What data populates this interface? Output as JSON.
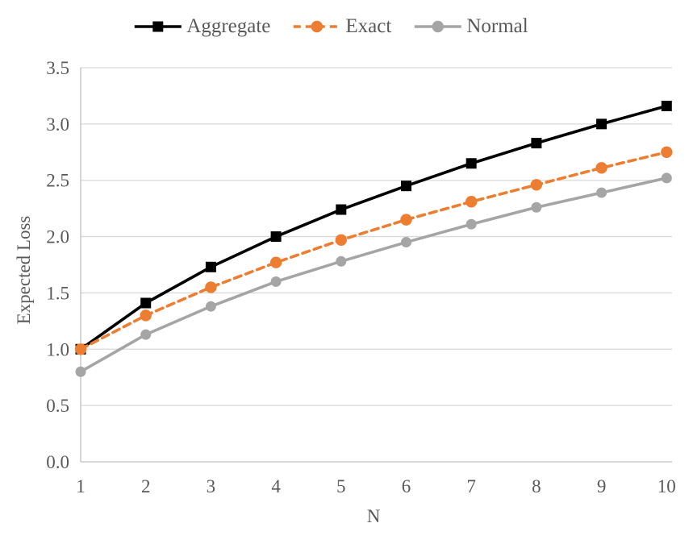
{
  "chart_data": {
    "type": "line",
    "title": "",
    "xlabel": "N",
    "ylabel": "Expected Loss",
    "x": [
      1,
      2,
      3,
      4,
      5,
      6,
      7,
      8,
      9,
      10
    ],
    "series": [
      {
        "name": "Aggregate",
        "color": "#000000",
        "line_style": "solid",
        "marker": "square",
        "values": [
          1.0,
          1.41,
          1.73,
          2.0,
          2.24,
          2.45,
          2.65,
          2.83,
          3.0,
          3.16
        ]
      },
      {
        "name": "Exact",
        "color": "#ED7D31",
        "line_style": "dashed",
        "marker": "circle",
        "values": [
          1.0,
          1.3,
          1.55,
          1.77,
          1.97,
          2.15,
          2.31,
          2.46,
          2.61,
          2.75
        ]
      },
      {
        "name": "Normal",
        "color": "#A5A5A5",
        "line_style": "solid",
        "marker": "circle",
        "values": [
          0.8,
          1.13,
          1.38,
          1.6,
          1.78,
          1.95,
          2.11,
          2.26,
          2.39,
          2.52
        ]
      }
    ],
    "ylim": [
      0,
      3.5
    ],
    "yticks": [
      "0.0",
      "0.5",
      "1.0",
      "1.5",
      "2.0",
      "2.5",
      "3.0",
      "3.5"
    ],
    "xticks": [
      "1",
      "2",
      "3",
      "4",
      "5",
      "6",
      "7",
      "8",
      "9",
      "10"
    ],
    "grid": true,
    "legend_position": "top",
    "colors": {
      "axis_text": "#595959",
      "gridline": "#D9D9D9",
      "axis_line": "#BFBFBF",
      "background": "#FFFFFF"
    }
  }
}
